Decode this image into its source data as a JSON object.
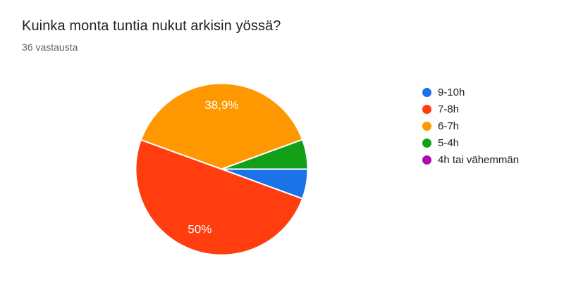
{
  "chart_data": {
    "type": "pie",
    "title": "Kuinka monta tuntia nukut arkisin yössä?",
    "subtitle": "36 vastausta",
    "legend_position": "right",
    "rotation_deg": 90,
    "label_radius_ratio": 0.745,
    "slices": [
      {
        "label": "9-10h",
        "percent": 5.6,
        "color": "#1A73E8",
        "data_label": ""
      },
      {
        "label": "7-8h",
        "percent": 50.0,
        "color": "#FF3D0F",
        "data_label": "50%"
      },
      {
        "label": "6-7h",
        "percent": 38.9,
        "color": "#FF9800",
        "data_label": "38,9%"
      },
      {
        "label": "5-4h",
        "percent": 5.6,
        "color": "#12A018",
        "data_label": ""
      },
      {
        "label": "4h tai vähemmän",
        "percent": 0.0,
        "color": "#AB0DB1",
        "data_label": ""
      }
    ]
  }
}
